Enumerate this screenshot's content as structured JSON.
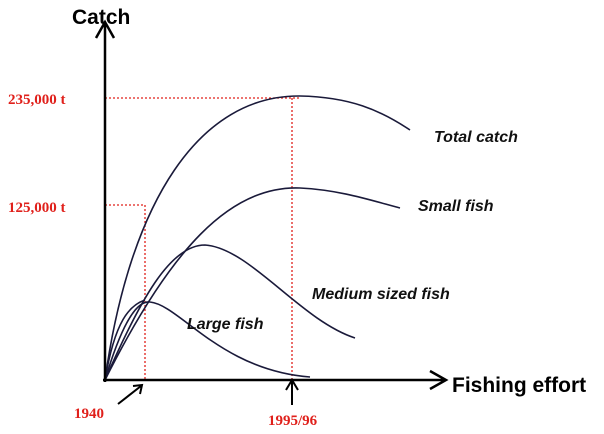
{
  "axes": {
    "y_label": "Catch",
    "x_label": "Fishing effort"
  },
  "y_markers": [
    "235,000 t",
    "125,000 t"
  ],
  "x_markers": [
    "1940",
    "1995/96"
  ],
  "curves": [
    "Total catch",
    "Small fish",
    "Medium sized fish",
    "Large fish"
  ]
}
